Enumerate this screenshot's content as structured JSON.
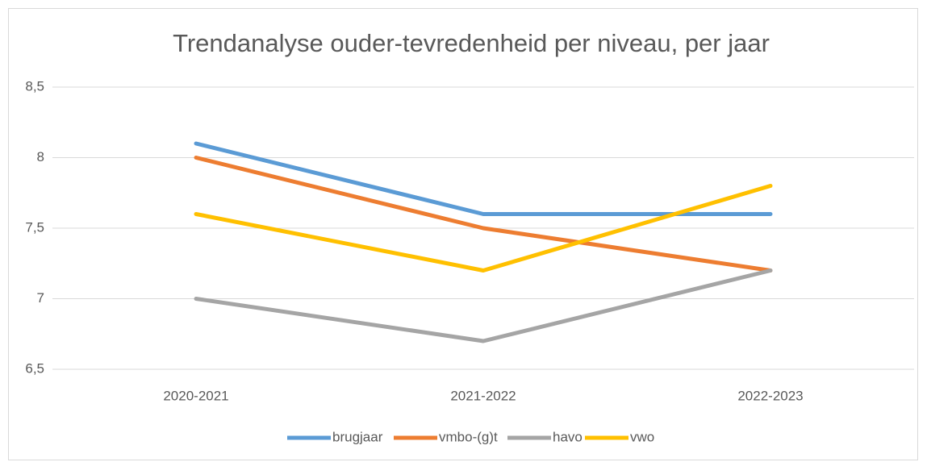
{
  "chart_data": {
    "type": "line",
    "title": "Trendanalyse ouder-tevredenheid per niveau, per jaar",
    "categories": [
      "2020-2021",
      "2021-2022",
      "2022-2023"
    ],
    "series": [
      {
        "name": "brugjaar",
        "color": "#5b9bd5",
        "values": [
          8.1,
          7.6,
          7.6
        ]
      },
      {
        "name": "vmbo-(g)t",
        "color": "#ed7d31",
        "values": [
          8.0,
          7.5,
          7.2
        ]
      },
      {
        "name": "havo",
        "color": "#a5a5a5",
        "values": [
          7.0,
          6.7,
          7.2
        ]
      },
      {
        "name": "vwo",
        "color": "#ffc000",
        "values": [
          7.6,
          7.2,
          7.8
        ]
      }
    ],
    "ylim": [
      6.5,
      8.5
    ],
    "yticks": [
      {
        "value": 6.5,
        "label": "6,5"
      },
      7,
      {
        "value": 7.5,
        "label": "7,5"
      },
      8,
      {
        "value": 8.5,
        "label": "8,5"
      }
    ],
    "grid": true,
    "legend": "bottom"
  }
}
